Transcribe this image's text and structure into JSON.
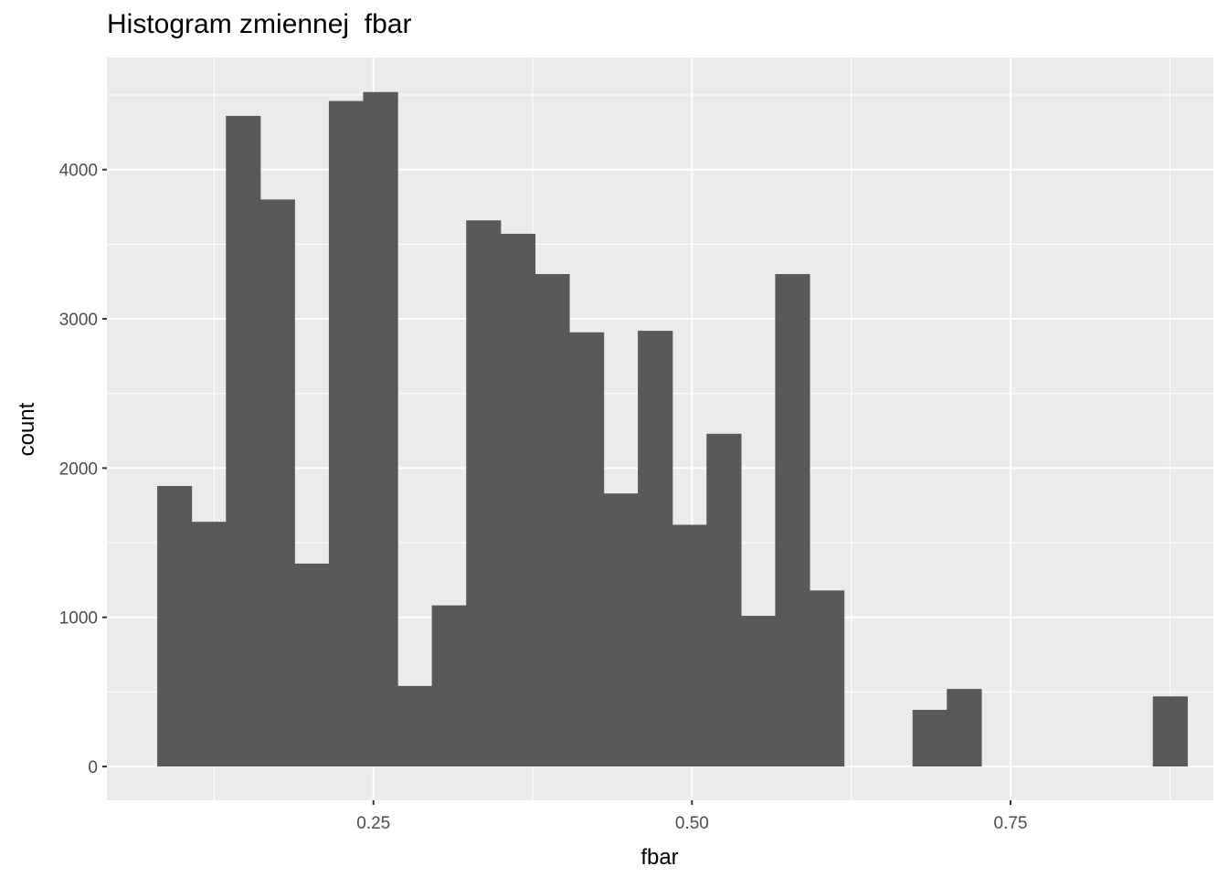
{
  "chart_data": {
    "type": "bar",
    "title": "Histogram zmiennej  fbar",
    "xlabel": "fbar",
    "ylabel": "count",
    "xlim": [
      0.0408,
      0.9092
    ],
    "ylim": [
      -226,
      4751
    ],
    "x_ticks": [
      0.25,
      0.5,
      0.75
    ],
    "x_tick_labels": [
      "0.25",
      "0.50",
      "0.75"
    ],
    "y_ticks": [
      0,
      1000,
      2000,
      3000,
      4000
    ],
    "y_tick_labels": [
      "0",
      "1000",
      "2000",
      "3000",
      "4000"
    ],
    "grid": true,
    "bin_width": 0.02694,
    "bins": [
      {
        "x_start": 0.0803,
        "x_end": 0.1072,
        "count": 1880
      },
      {
        "x_start": 0.1072,
        "x_end": 0.1342,
        "count": 1640
      },
      {
        "x_start": 0.1342,
        "x_end": 0.1611,
        "count": 4360
      },
      {
        "x_start": 0.1611,
        "x_end": 0.188,
        "count": 3800
      },
      {
        "x_start": 0.188,
        "x_end": 0.215,
        "count": 1360
      },
      {
        "x_start": 0.215,
        "x_end": 0.2419,
        "count": 4460
      },
      {
        "x_start": 0.2419,
        "x_end": 0.2689,
        "count": 4520
      },
      {
        "x_start": 0.2689,
        "x_end": 0.2958,
        "count": 540
      },
      {
        "x_start": 0.2958,
        "x_end": 0.3228,
        "count": 1080
      },
      {
        "x_start": 0.3228,
        "x_end": 0.3497,
        "count": 3660
      },
      {
        "x_start": 0.3497,
        "x_end": 0.3767,
        "count": 3570
      },
      {
        "x_start": 0.3767,
        "x_end": 0.4036,
        "count": 3300
      },
      {
        "x_start": 0.4036,
        "x_end": 0.4306,
        "count": 2910
      },
      {
        "x_start": 0.4306,
        "x_end": 0.4575,
        "count": 1830
      },
      {
        "x_start": 0.4575,
        "x_end": 0.4845,
        "count": 2920
      },
      {
        "x_start": 0.4845,
        "x_end": 0.5114,
        "count": 1620
      },
      {
        "x_start": 0.5114,
        "x_end": 0.5384,
        "count": 2230
      },
      {
        "x_start": 0.5384,
        "x_end": 0.5653,
        "count": 1010
      },
      {
        "x_start": 0.5653,
        "x_end": 0.5922,
        "count": 3300
      },
      {
        "x_start": 0.5922,
        "x_end": 0.6192,
        "count": 1180
      },
      {
        "x_start": 0.6192,
        "x_end": 0.6461,
        "count": 0
      },
      {
        "x_start": 0.6461,
        "x_end": 0.6731,
        "count": 0
      },
      {
        "x_start": 0.6731,
        "x_end": 0.7,
        "count": 380
      },
      {
        "x_start": 0.7,
        "x_end": 0.727,
        "count": 520
      },
      {
        "x_start": 0.727,
        "x_end": 0.7539,
        "count": 0
      },
      {
        "x_start": 0.7539,
        "x_end": 0.7809,
        "count": 0
      },
      {
        "x_start": 0.7809,
        "x_end": 0.8078,
        "count": 0
      },
      {
        "x_start": 0.8078,
        "x_end": 0.8348,
        "count": 0
      },
      {
        "x_start": 0.8348,
        "x_end": 0.8617,
        "count": 0
      },
      {
        "x_start": 0.8617,
        "x_end": 0.8887,
        "count": 470
      }
    ],
    "colors": {
      "bar": "#595959",
      "panel": "#ebebeb",
      "grid": "#ffffff",
      "tick_text": "#4d4d4d",
      "tick_mark": "#333333"
    }
  }
}
